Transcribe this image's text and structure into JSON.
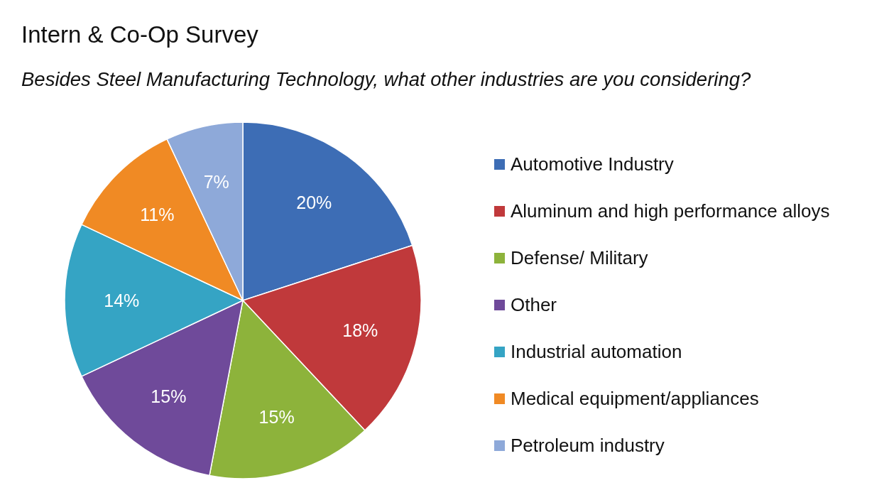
{
  "chart_data": {
    "type": "pie",
    "title": "Intern & Co-Op Survey",
    "subtitle": "Besides Steel Manufacturing Technology, what other industries are you considering?",
    "categories": [
      "Automotive Industry",
      "Aluminum and high performance alloys",
      "Defense/ Military",
      "Other",
      "Industrial automation",
      "Medical equipment/appliances",
      "Petroleum industry"
    ],
    "values": [
      20,
      18,
      15,
      15,
      14,
      11,
      7
    ],
    "value_labels": [
      "20%",
      "18%",
      "15%",
      "15%",
      "14%",
      "11%",
      "7%"
    ],
    "colors": [
      "#3d6db5",
      "#c0393b",
      "#8db33b",
      "#6f4a9a",
      "#35a4c4",
      "#f08a24",
      "#8ea9d9"
    ],
    "legend": "right"
  }
}
